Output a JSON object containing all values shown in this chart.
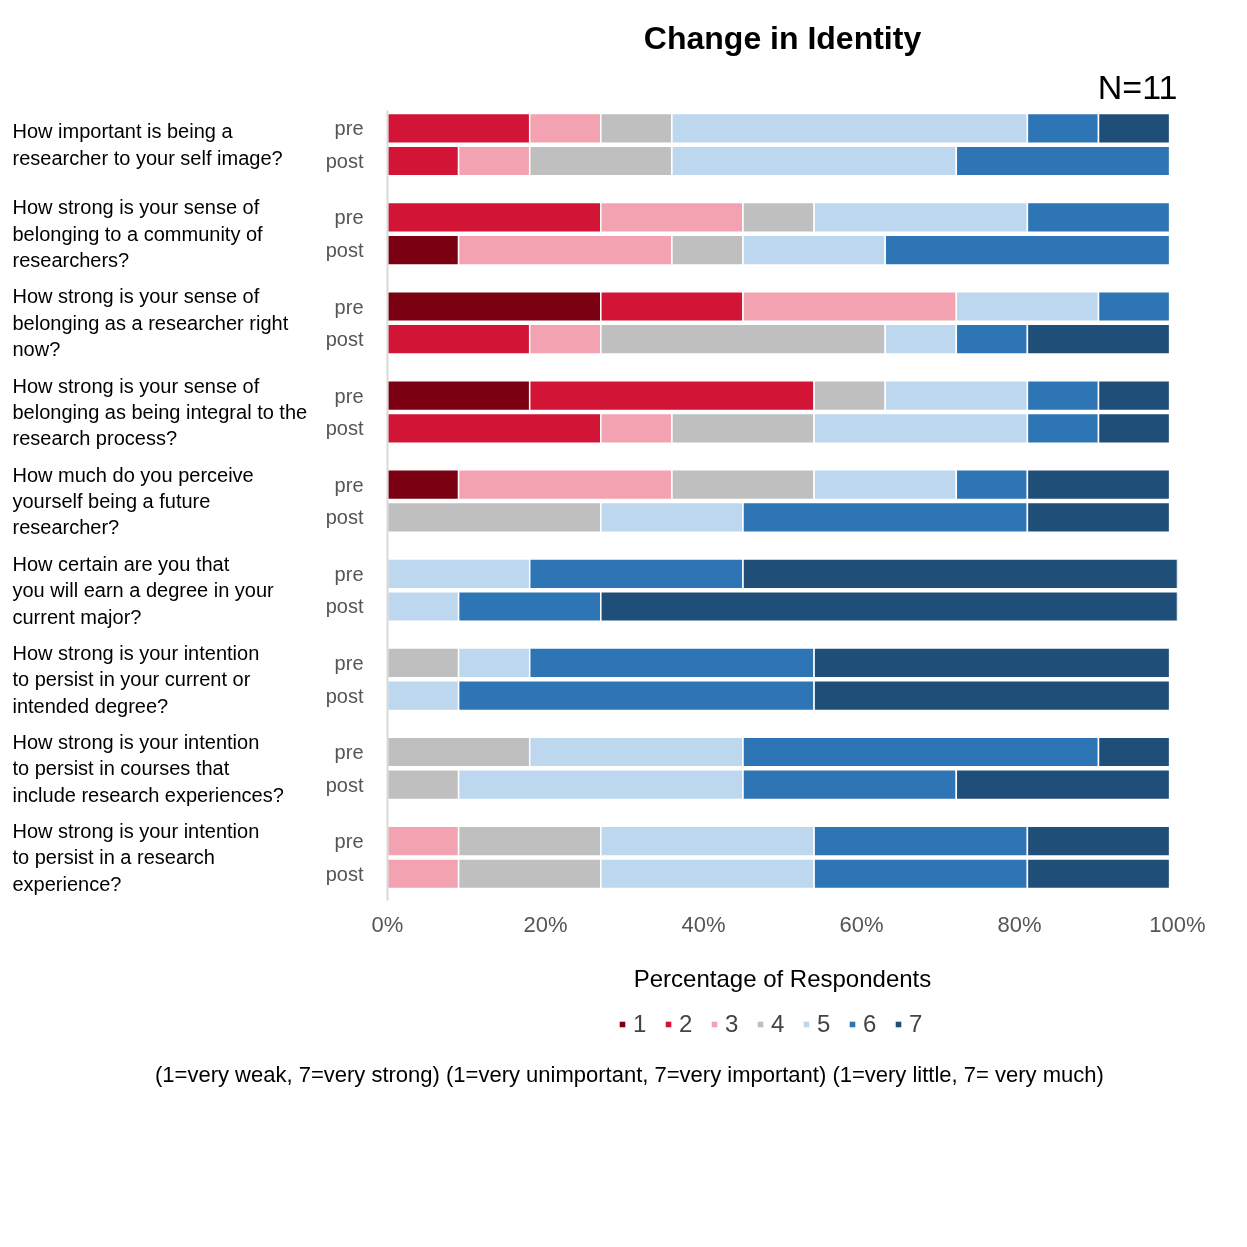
{
  "chart_data": {
    "type": "bar",
    "orientation": "horizontal",
    "stacked": true,
    "title": "Change in Identity",
    "xlabel": "Percentage of Respondents",
    "categories": [
      "pre",
      "post",
      "pre",
      "post",
      "pre",
      "post",
      "pre",
      "post",
      "pre",
      "post",
      "pre",
      "post",
      "pre",
      "post",
      "pre",
      "post",
      "pre",
      "post"
    ],
    "series": [
      {
        "name": "1",
        "color": "#7b0011",
        "values": [
          0,
          0,
          0,
          9,
          27,
          0,
          18,
          0,
          9,
          0,
          0,
          0,
          0,
          0,
          0,
          0,
          0,
          0
        ]
      },
      {
        "name": "2",
        "color": "#d21437",
        "values": [
          18,
          9,
          27,
          0,
          18,
          18,
          36,
          27,
          0,
          0,
          0,
          0,
          0,
          0,
          0,
          0,
          0,
          0
        ]
      },
      {
        "name": "3",
        "color": "#f2a2b0",
        "values": [
          9,
          9,
          18,
          27,
          27,
          9,
          0,
          9,
          27,
          0,
          0,
          0,
          0,
          0,
          0,
          0,
          9,
          9
        ]
      },
      {
        "name": "4",
        "color": "#bfbfbf",
        "values": [
          9,
          18,
          9,
          9,
          0,
          36,
          9,
          18,
          18,
          27,
          0,
          0,
          9,
          0,
          18,
          9,
          18,
          18
        ]
      },
      {
        "name": "5",
        "color": "#bdd7ee",
        "values": [
          45,
          36,
          27,
          18,
          18,
          9,
          18,
          27,
          18,
          18,
          18,
          9,
          9,
          9,
          27,
          36,
          27,
          27
        ]
      },
      {
        "name": "6",
        "color": "#2e75b6",
        "values": [
          9,
          27,
          18,
          36,
          9,
          9,
          9,
          9,
          9,
          36,
          27,
          18,
          36,
          45,
          45,
          27,
          27,
          27
        ]
      },
      {
        "name": "7",
        "color": "#1f4e79",
        "values": [
          9,
          0,
          0,
          0,
          0,
          18,
          9,
          9,
          18,
          18,
          55,
          73,
          45,
          45,
          9,
          27,
          18,
          18
        ]
      }
    ],
    "xlim": [
      0,
      100
    ],
    "xticks": [
      {
        "value": 0,
        "label": "0%"
      },
      {
        "value": 20,
        "label": "20%"
      },
      {
        "value": 40,
        "label": "40%"
      },
      {
        "value": 60,
        "label": "60%"
      },
      {
        "value": 80,
        "label": "80%"
      },
      {
        "value": 100,
        "label": "100%"
      }
    ],
    "legend": "bottom",
    "grid": false,
    "annotations": [
      "N=11",
      "How important is being a\nresearcher to your self image?",
      "How strong is your sense of\nbelonging to a community of\nresearchers?",
      "How strong is your sense of\nbelonging as a researcher right\nnow?",
      "How strong is your sense of\nbelonging as being integral to the\nresearch process?",
      "How much do you perceive\nyourself being a future\nresearcher?",
      "How certain are you that\nyou will earn a degree in your\ncurrent major?",
      "How strong is your intention\nto persist in your current or\nintended degree?",
      "How strong is your intention\nto persist in courses that\n include research experiences?",
      "How strong is your intention\nto persist in a research\nexperience?",
      "(1=very weak, 7=very strong)  (1=very unimportant, 7=very important)  (1=very little, 7= very much)"
    ]
  }
}
